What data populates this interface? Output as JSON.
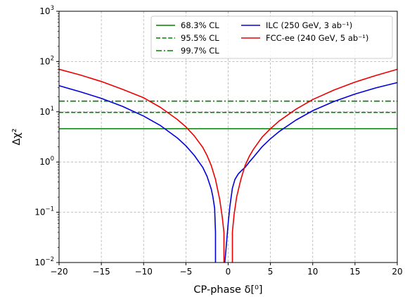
{
  "chart_data": {
    "type": "line",
    "xlabel": "CP-phase δ[⁰]",
    "ylabel": "Δχ²",
    "xlim": [
      -20,
      20
    ],
    "ylim": [
      0.01,
      1000
    ],
    "yscale": "log",
    "grid": true,
    "legend": "top-right",
    "x_ticks": [
      -20,
      -15,
      -10,
      -5,
      0,
      5,
      10,
      15,
      20
    ],
    "x_tick_labels": [
      "−20",
      "−15",
      "−10",
      "−5",
      "0",
      "5",
      "10",
      "15",
      "20"
    ],
    "y_ticks": [
      0.01,
      0.1,
      1,
      10,
      100,
      1000
    ],
    "y_tick_labels": [
      {
        "base": "10",
        "exp": "−2"
      },
      {
        "base": "10",
        "exp": "−1"
      },
      {
        "base": "10",
        "exp": "0"
      },
      {
        "base": "10",
        "exp": "1"
      },
      {
        "base": "10",
        "exp": "2"
      },
      {
        "base": "10",
        "exp": "3"
      }
    ],
    "reference_lines": [
      {
        "label": "68.3% CL",
        "y": 4.6,
        "color": "#008000",
        "style": "solid"
      },
      {
        "label": "95.5% CL",
        "y": 9.7,
        "color": "#008000",
        "style": "dashed"
      },
      {
        "label": "99.7% CL",
        "y": 16.3,
        "color": "#008000",
        "style": "dashdot"
      }
    ],
    "series": [
      {
        "name": "ILC (250 GeV, 3 ab⁻¹)",
        "color": "#0000dd",
        "segments": [
          {
            "x": [
              -20,
              -17.5,
              -15,
              -12.5,
              -10,
              -8,
              -6,
              -5,
              -4,
              -3,
              -2.5,
              -2,
              -1.8,
              -1.6,
              -1.5,
              -1.5
            ],
            "y": [
              33,
              25,
              18.5,
              12.8,
              8.2,
              5.3,
              3.0,
              2.1,
              1.35,
              0.78,
              0.52,
              0.29,
              0.2,
              0.12,
              0.04,
              0.01
            ]
          },
          {
            "x": [
              -0.4,
              -0.3,
              0,
              0.2,
              0.5,
              0.8,
              1.2,
              1.6,
              2.0,
              2.5,
              3,
              4,
              5,
              6,
              8,
              10,
              12.5,
              15,
              17.5,
              20
            ],
            "y": [
              0.01,
              0.015,
              0.06,
              0.13,
              0.3,
              0.45,
              0.58,
              0.68,
              0.78,
              1.0,
              1.25,
              2.0,
              2.9,
              4.0,
              6.8,
              10.5,
              16,
              22.5,
              30,
              38
            ]
          }
        ]
      },
      {
        "name": "FCC-ee (240 GeV, 5 ab⁻¹)",
        "color": "#ee0000",
        "segments": [
          {
            "x": [
              -20,
              -17.5,
              -15,
              -12.5,
              -10,
              -8,
              -6,
              -5,
              -4,
              -3,
              -2.5,
              -2,
              -1.5,
              -1,
              -0.7,
              -0.5,
              -0.5
            ],
            "y": [
              70,
              54,
              40,
              28,
              19,
              12.2,
              7,
              5.0,
              3.3,
              1.95,
              1.35,
              0.85,
              0.45,
              0.18,
              0.08,
              0.04,
              0.01
            ]
          },
          {
            "x": [
              0.5,
              0.5,
              0.7,
              1,
              1.5,
              2,
              2.5,
              3,
              4,
              5,
              6,
              8,
              10,
              12.5,
              15,
              17.5,
              20
            ],
            "y": [
              0.01,
              0.04,
              0.09,
              0.2,
              0.45,
              0.85,
              1.3,
              1.8,
              3.1,
              4.6,
              6.5,
              11.2,
              17.5,
              27,
              39,
              53,
              70
            ]
          }
        ]
      }
    ]
  }
}
